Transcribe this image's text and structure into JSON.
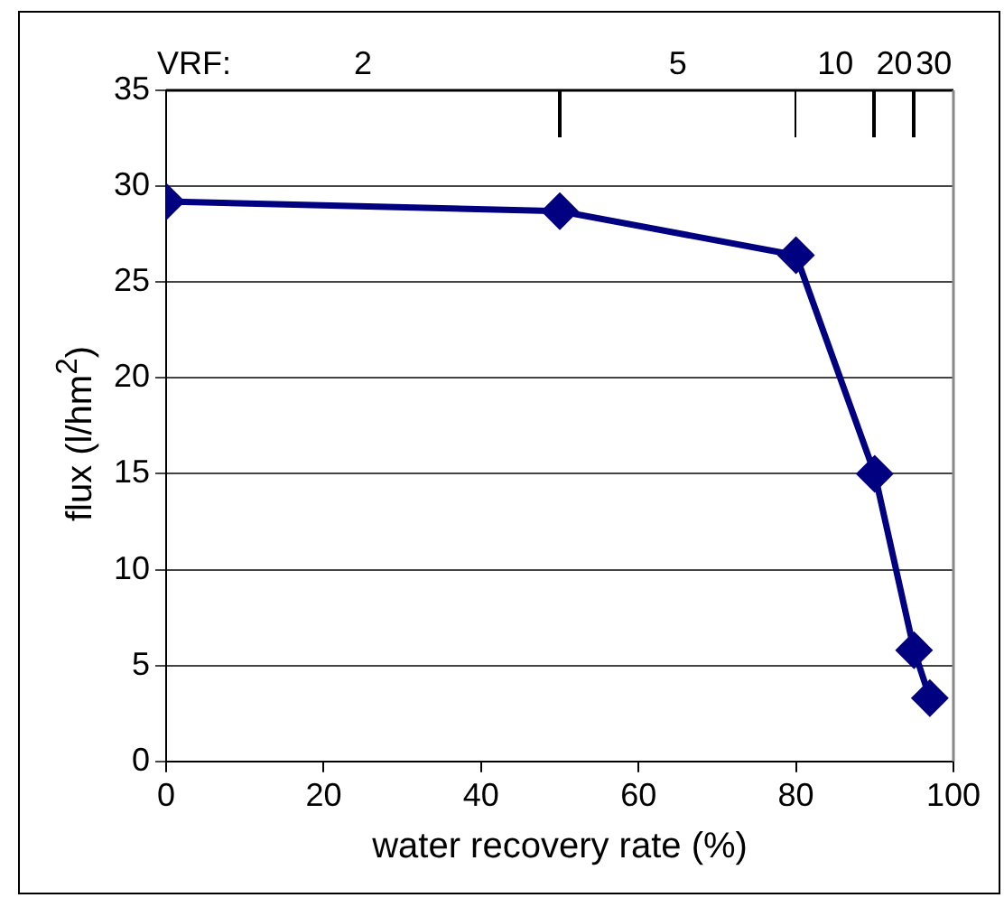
{
  "chart_data": {
    "type": "line",
    "xlabel": "water recovery rate (%)",
    "ylabel": "flux (l/hm$^{2}$)",
    "series": [
      {
        "color": "#000080",
        "x": [
          0,
          50,
          80,
          90,
          95,
          97
        ],
        "values": [
          29.2,
          28.7,
          26.4,
          15,
          5.8,
          3.3
        ]
      }
    ],
    "xlim": [
      0,
      100
    ],
    "xticks": [
      0,
      20,
      40,
      60,
      80,
      100
    ],
    "ylim": [
      0,
      35
    ],
    "yticks": [
      0,
      5,
      10,
      15,
      20,
      25,
      30,
      35
    ],
    "annotations": [
      "VRF:",
      "2",
      "5",
      "10",
      "20",
      "30"
    ],
    "grid": "y",
    "marker": "diamond",
    "line_style": "solid",
    "legend": false
  }
}
